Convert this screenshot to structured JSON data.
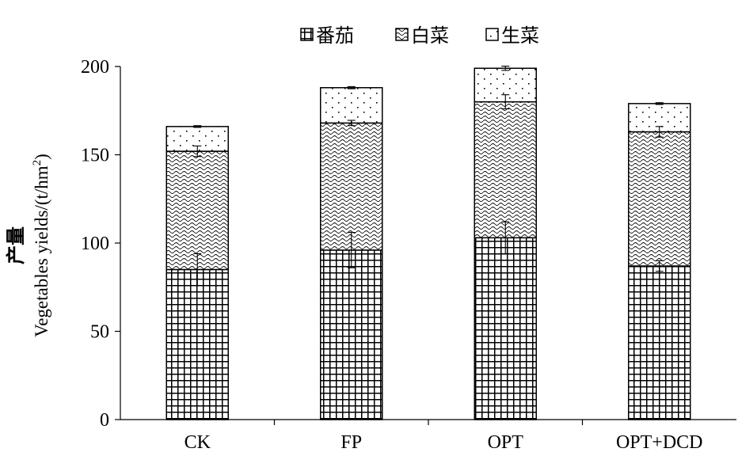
{
  "chart_data": {
    "type": "bar",
    "stacked": true,
    "categories": [
      "CK",
      "FP",
      "OPT",
      "OPT+DCD"
    ],
    "series": [
      {
        "name": "番茄",
        "pattern": "grid",
        "values": [
          85,
          96,
          103,
          87
        ],
        "errors": [
          9,
          10,
          9,
          3
        ]
      },
      {
        "name": "白菜",
        "pattern": "wave",
        "values": [
          67,
          72,
          77,
          76
        ],
        "errors": [
          3,
          1.5,
          4,
          3
        ]
      },
      {
        "name": "生菜",
        "pattern": "dots",
        "values": [
          14,
          20,
          19,
          16
        ],
        "errors": [
          0.5,
          0.6,
          1.2,
          0.5
        ]
      }
    ],
    "ylabel_cn": "产量",
    "ylabel_en": "Vegetables yields/(t/hm",
    "ylabel_sup": "2",
    "ylabel_close": ")",
    "ylim": [
      0,
      200
    ],
    "yticks": [
      0,
      50,
      100,
      150,
      200
    ],
    "legend_position": "top",
    "grid": false,
    "colors": {
      "bar_fill": "#ffffff",
      "ink": "#000000"
    }
  }
}
